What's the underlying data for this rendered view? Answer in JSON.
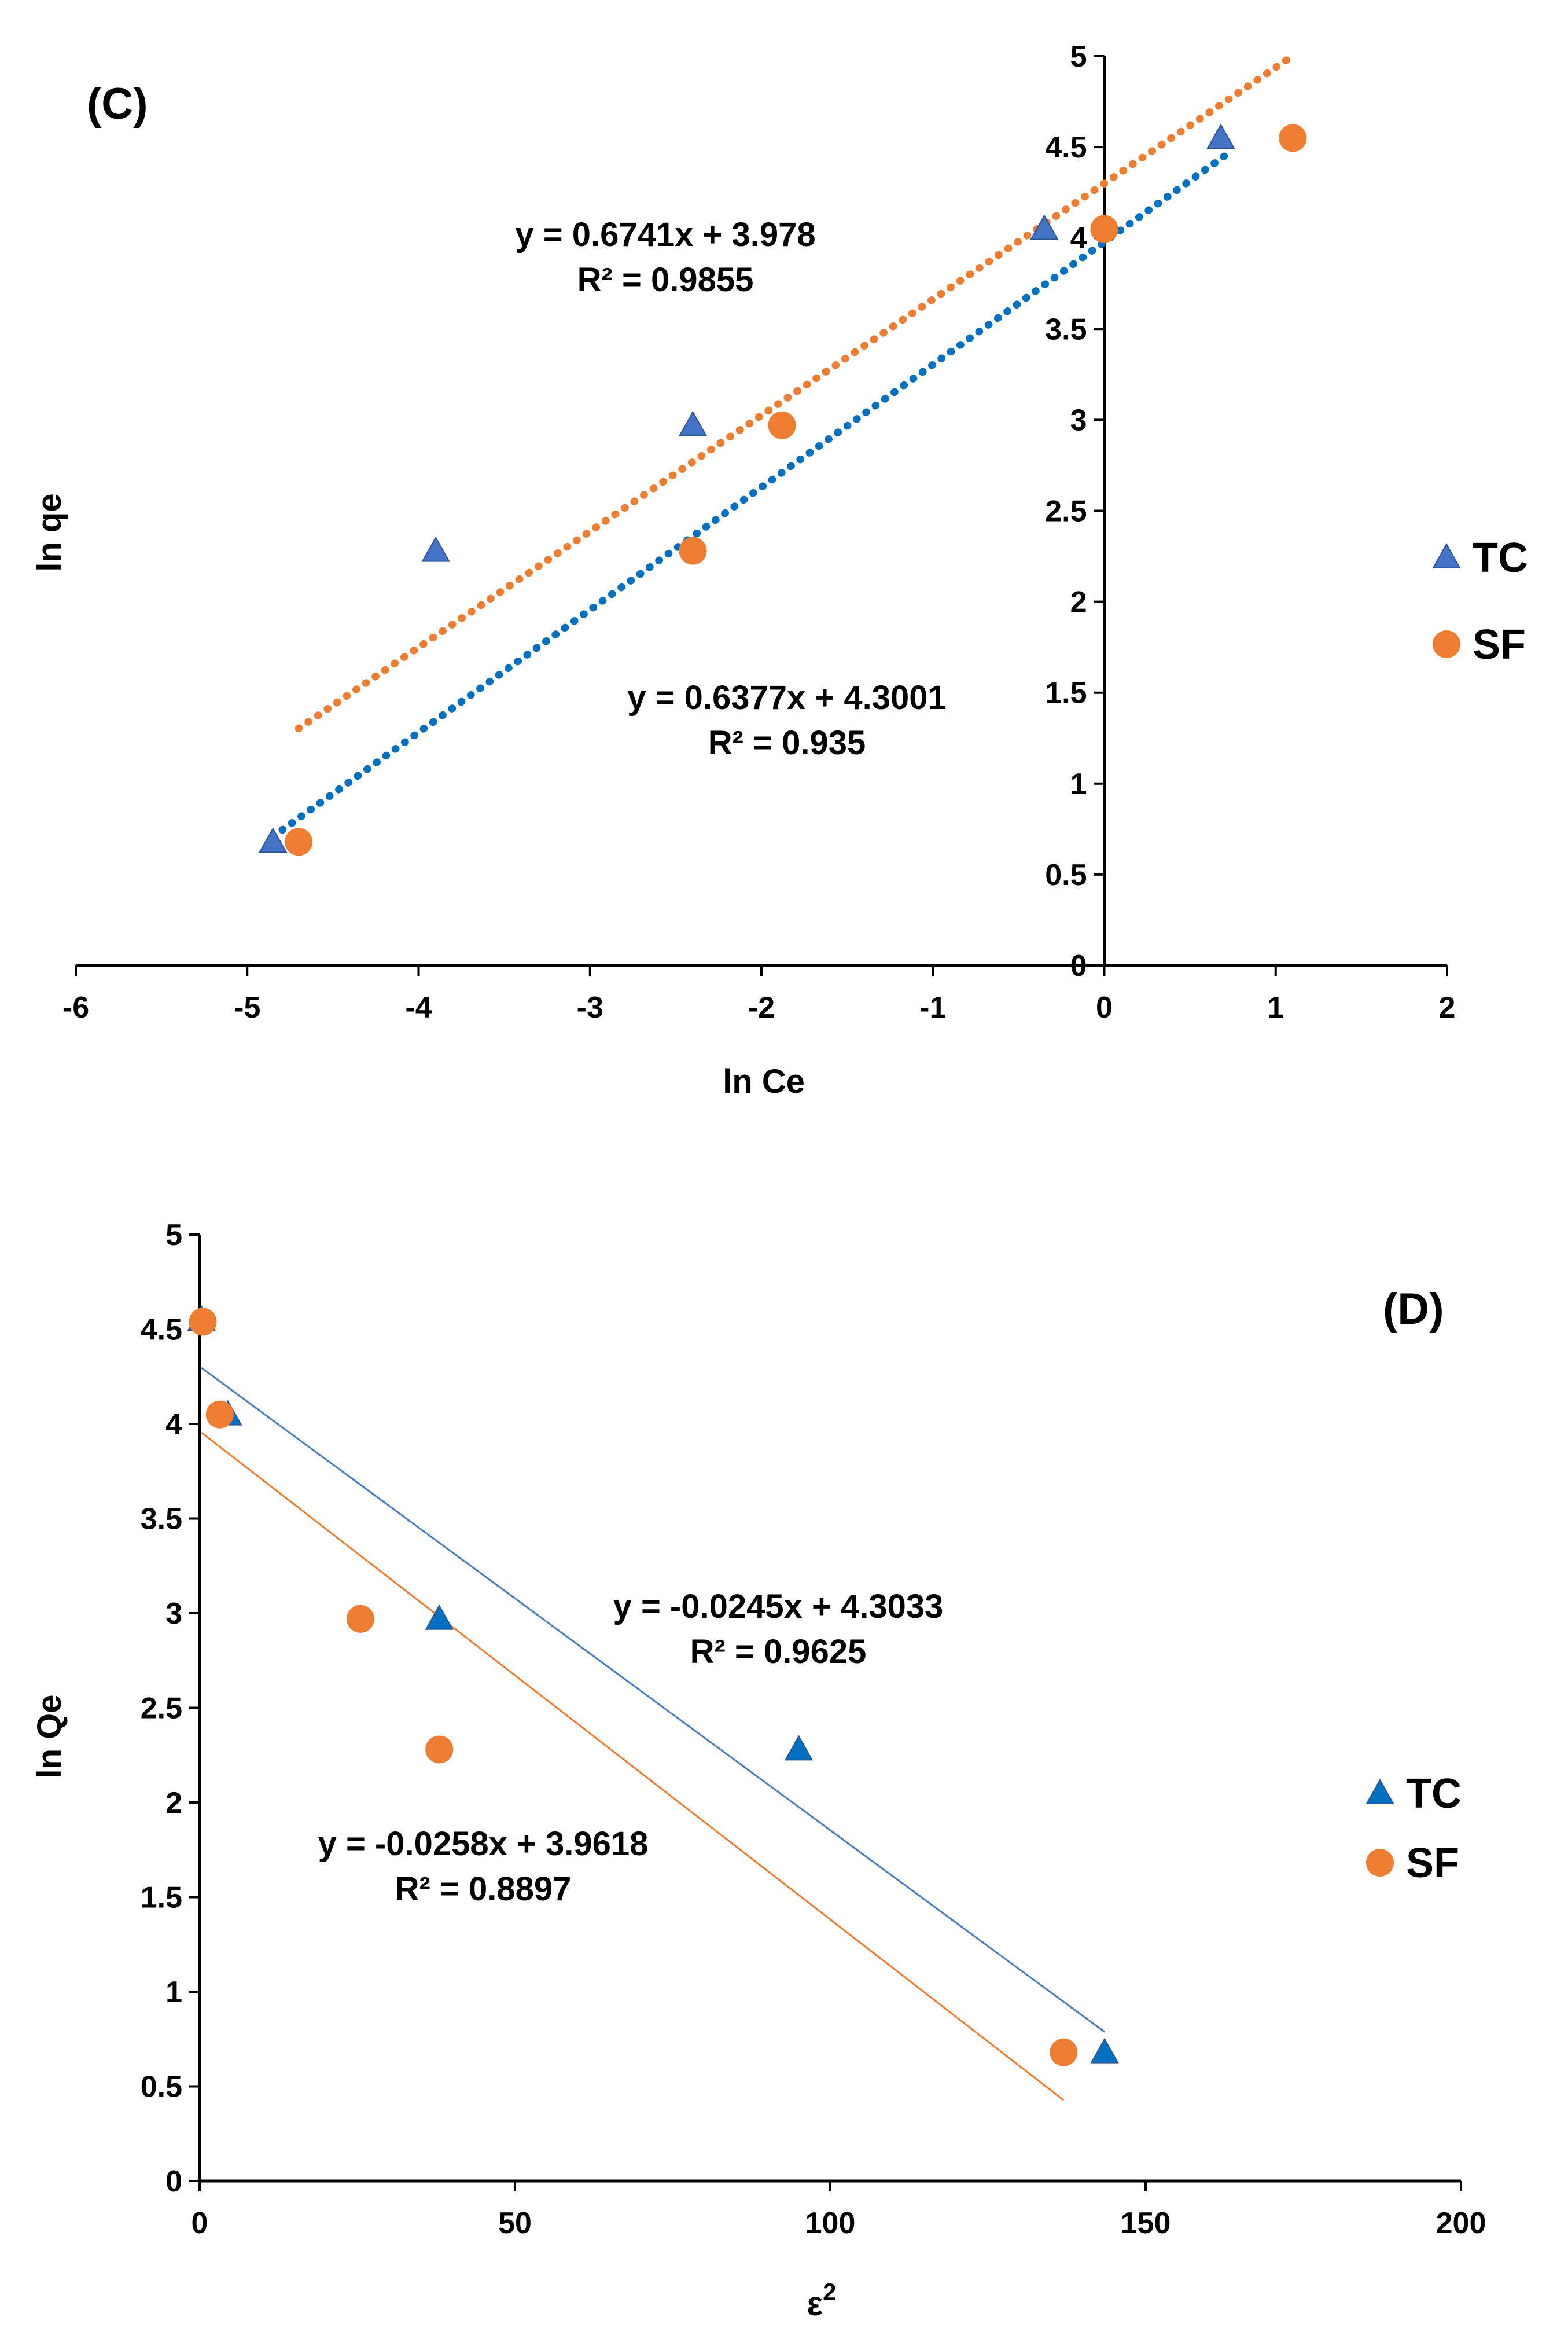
{
  "chart_data": [
    {
      "type": "scatter",
      "panel_label": "(C)",
      "xlabel": "ln Ce",
      "ylabel": "ln qe",
      "xlim": [
        -6,
        2
      ],
      "ylim": [
        0,
        5
      ],
      "xticks": [
        -6,
        -5,
        -4,
        -3,
        -2,
        -1,
        0,
        1,
        2
      ],
      "yticks": [
        0,
        0.5,
        1,
        1.5,
        2,
        2.5,
        3,
        3.5,
        4,
        4.5,
        5
      ],
      "grid": false,
      "legend_position": "right",
      "series": [
        {
          "name": "TC",
          "marker": "triangle",
          "color": "#4472c4",
          "trend_color": "#0070c0",
          "trend_style": "dotted",
          "x": [
            -4.85,
            -3.9,
            -2.4,
            -0.35,
            0.68
          ],
          "y": [
            0.68,
            2.28,
            2.97,
            4.05,
            4.55
          ],
          "trend": {
            "slope": 0.6741,
            "intercept": 3.978,
            "x_range": [
              -4.85,
              0.7
            ]
          },
          "equation": "y = 0.6741x + 3.978",
          "r2": "R² = 0.9855"
        },
        {
          "name": "SF",
          "marker": "circle",
          "color": "#ed7d31",
          "trend_color": "#ed7d31",
          "trend_style": "dotted",
          "x": [
            -4.7,
            -2.4,
            -1.88,
            0.0,
            1.1
          ],
          "y": [
            0.68,
            2.28,
            2.97,
            4.05,
            4.55
          ],
          "trend": {
            "slope": 0.6377,
            "intercept": 4.3001,
            "x_range": [
              -4.7,
              1.1
            ]
          },
          "equation": "y = 0.6377x + 4.3001",
          "r2": "R² = 0.935"
        }
      ]
    },
    {
      "type": "scatter",
      "panel_label": "(D)",
      "xlabel": "ε",
      "xlabel_superscript": "2",
      "ylabel": "ln Qe",
      "xlim": [
        0,
        200
      ],
      "ylim": [
        0,
        5
      ],
      "xticks": [
        0,
        50,
        100,
        150,
        200
      ],
      "yticks": [
        0,
        0.5,
        1,
        1.5,
        2,
        2.5,
        3,
        3.5,
        4,
        4.5,
        5
      ],
      "grid": false,
      "legend_position": "right",
      "series": [
        {
          "name": "TC",
          "marker": "triangle",
          "color": "#0070c0",
          "trend_color": "#4a7ebb",
          "trend_style": "solid",
          "x": [
            0.3,
            4.5,
            38,
            95,
            143.5
          ],
          "y": [
            4.55,
            4.05,
            2.97,
            2.28,
            0.68
          ],
          "trend": {
            "slope": -0.0245,
            "intercept": 4.3033,
            "x_range": [
              0.3,
              143.5
            ]
          },
          "equation": "y = -0.0245x + 4.3033",
          "r2": "R² = 0.9625"
        },
        {
          "name": "SF",
          "marker": "circle",
          "color": "#ed7d31",
          "trend_color": "#ed7d31",
          "trend_style": "solid",
          "x": [
            0.5,
            3.2,
            25.5,
            38,
            137
          ],
          "y": [
            4.54,
            4.05,
            2.97,
            2.28,
            0.68
          ],
          "trend": {
            "slope": -0.0258,
            "intercept": 3.9618,
            "x_range": [
              0.3,
              137
            ]
          },
          "equation": "y = -0.0258x + 3.9618",
          "r2": "R² = 0.8897"
        }
      ]
    }
  ]
}
